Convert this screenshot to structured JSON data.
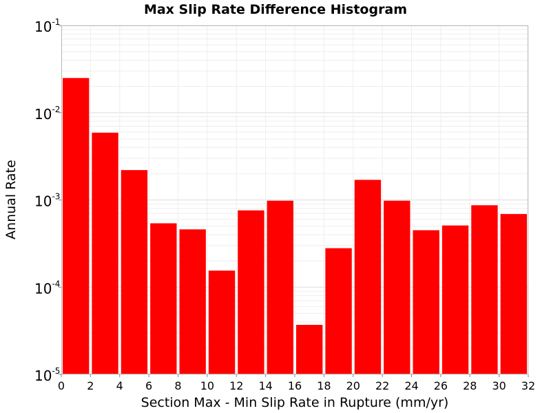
{
  "chart_data": {
    "type": "bar",
    "title": "Max Slip Rate Difference Histogram",
    "xlabel": "Section Max - Min Slip Rate in Rupture (mm/yr)",
    "ylabel": "Annual Rate",
    "y_scale": "log",
    "xlim": [
      0,
      32
    ],
    "ylim": [
      1e-05,
      0.1
    ],
    "grid": true,
    "bar_color": "#ff0000",
    "bin_width": 2,
    "x_ticks": [
      "0",
      "2",
      "4",
      "6",
      "8",
      "10",
      "12",
      "14",
      "16",
      "18",
      "20",
      "22",
      "24",
      "26",
      "28",
      "30",
      "32"
    ],
    "y_ticks": [
      {
        "base": "10",
        "exp": "-5",
        "value": 1e-05
      },
      {
        "base": "10",
        "exp": "-4",
        "value": 0.0001
      },
      {
        "base": "10",
        "exp": "-3",
        "value": 0.001
      },
      {
        "base": "10",
        "exp": "-2",
        "value": 0.01
      },
      {
        "base": "10",
        "exp": "-1",
        "value": 0.1
      }
    ],
    "bins": [
      {
        "x_start": 0,
        "x_end": 2,
        "value": 0.025
      },
      {
        "x_start": 2,
        "x_end": 4,
        "value": 0.0059
      },
      {
        "x_start": 4,
        "x_end": 6,
        "value": 0.0022
      },
      {
        "x_start": 6,
        "x_end": 8,
        "value": 0.00054
      },
      {
        "x_start": 8,
        "x_end": 10,
        "value": 0.00046
      },
      {
        "x_start": 10,
        "x_end": 12,
        "value": 0.000155
      },
      {
        "x_start": 12,
        "x_end": 14,
        "value": 0.00076
      },
      {
        "x_start": 14,
        "x_end": 16,
        "value": 0.00098
      },
      {
        "x_start": 16,
        "x_end": 18,
        "value": 3.7e-05
      },
      {
        "x_start": 18,
        "x_end": 20,
        "value": 0.00028
      },
      {
        "x_start": 20,
        "x_end": 22,
        "value": 0.0017
      },
      {
        "x_start": 22,
        "x_end": 24,
        "value": 0.00098
      },
      {
        "x_start": 24,
        "x_end": 26,
        "value": 0.00045
      },
      {
        "x_start": 26,
        "x_end": 28,
        "value": 0.00051
      },
      {
        "x_start": 28,
        "x_end": 30,
        "value": 0.00087
      },
      {
        "x_start": 30,
        "x_end": 32,
        "value": 0.00069
      }
    ]
  }
}
